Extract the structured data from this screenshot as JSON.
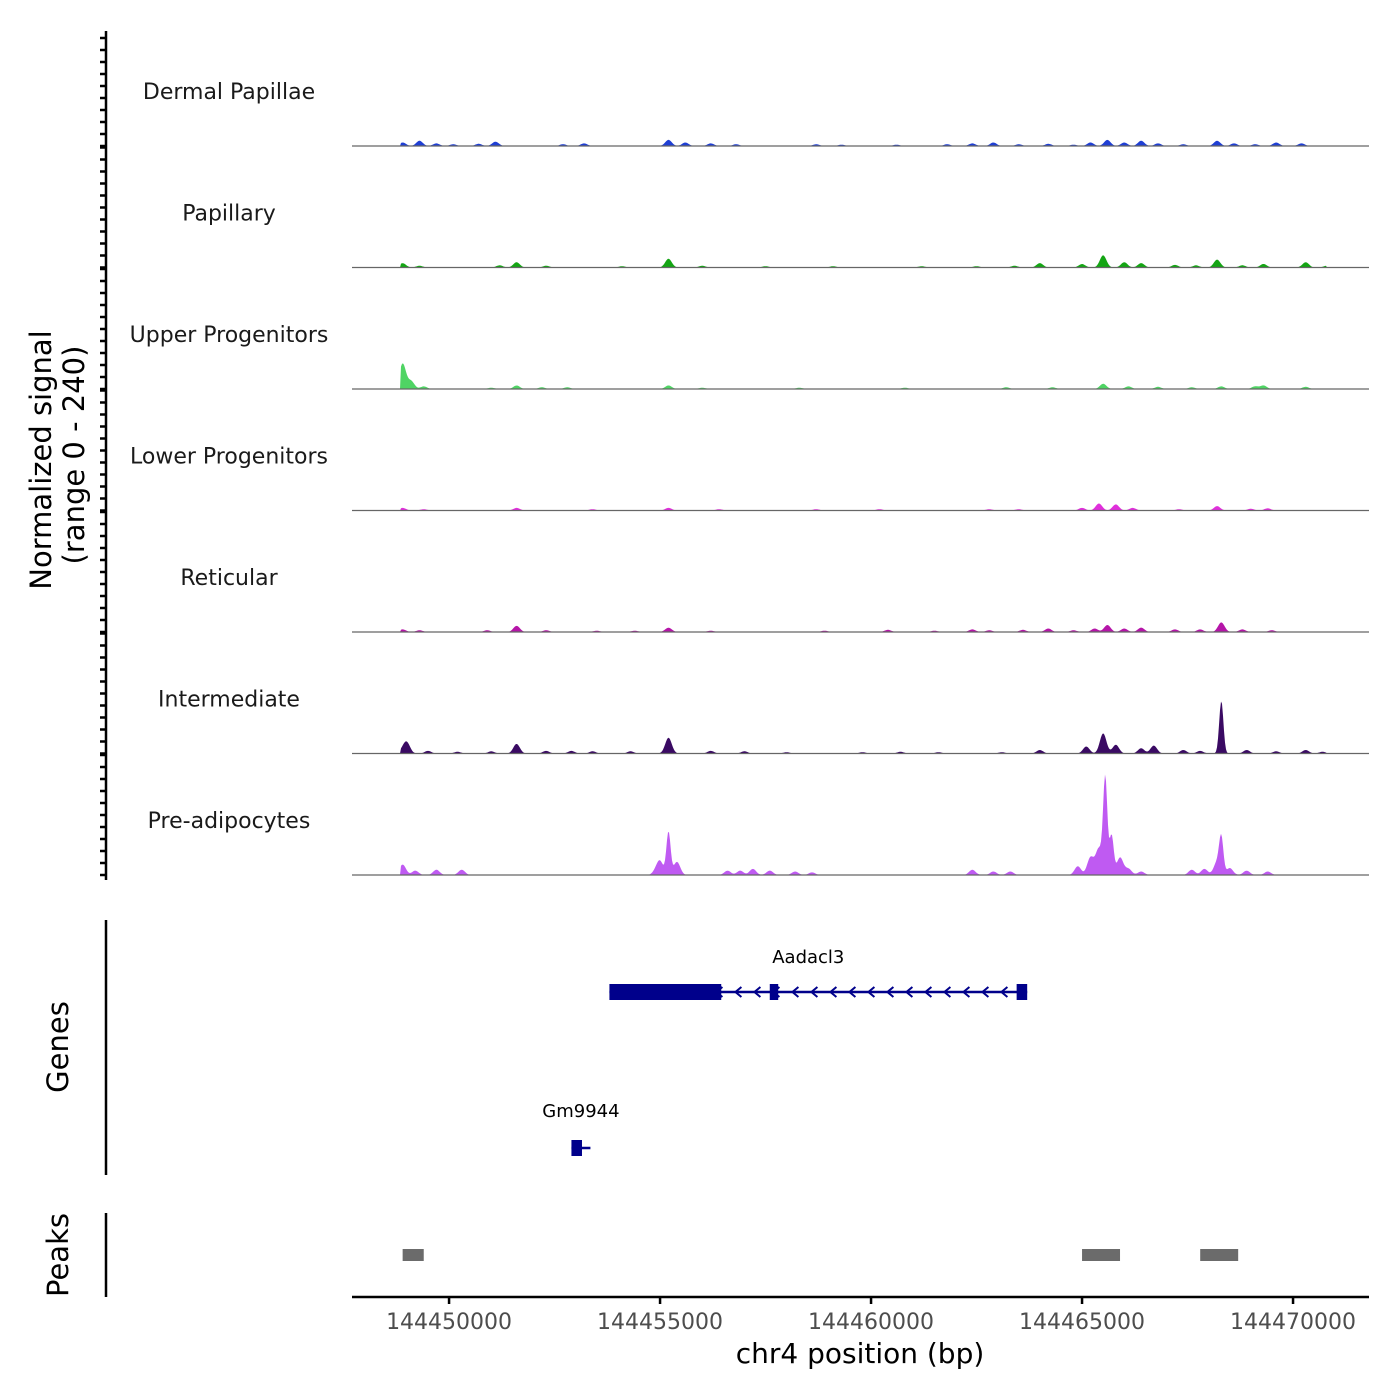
{
  "chart_data": {
    "type": "area",
    "title": "",
    "chromosome": "chr4",
    "xlabel": "chr4 position (bp)",
    "xlim": [
      144447700,
      144471800
    ],
    "xticks": [
      144450000,
      144455000,
      144460000,
      144465000,
      144470000
    ],
    "xtick_labels": [
      "144450000",
      "144455000",
      "144460000",
      "144465000",
      "144470000"
    ],
    "coverage_ylabel_line1": "Normalized signal",
    "coverage_ylabel_line2": "(range 0 - 240)",
    "ylim": [
      0,
      240
    ],
    "series": [
      {
        "name": "Dermal Papillae",
        "color": "#1f3fd4",
        "peaks": [
          [
            144448900,
            8
          ],
          [
            144449300,
            12
          ],
          [
            144449700,
            6
          ],
          [
            144450100,
            4
          ],
          [
            144450700,
            5
          ],
          [
            144451100,
            10
          ],
          [
            144452700,
            4
          ],
          [
            144453200,
            6
          ],
          [
            144455200,
            14
          ],
          [
            144455600,
            8
          ],
          [
            144456200,
            6
          ],
          [
            144456800,
            4
          ],
          [
            144458700,
            4
          ],
          [
            144459300,
            3
          ],
          [
            144460600,
            3
          ],
          [
            144461800,
            4
          ],
          [
            144462400,
            6
          ],
          [
            144462900,
            8
          ],
          [
            144463500,
            4
          ],
          [
            144464200,
            5
          ],
          [
            144464800,
            3
          ],
          [
            144465200,
            8
          ],
          [
            144465600,
            14
          ],
          [
            144466000,
            8
          ],
          [
            144466400,
            12
          ],
          [
            144466800,
            6
          ],
          [
            144467400,
            4
          ],
          [
            144468200,
            12
          ],
          [
            144468600,
            6
          ],
          [
            144469100,
            4
          ],
          [
            144469600,
            8
          ],
          [
            144470200,
            6
          ]
        ]
      },
      {
        "name": "Papillary",
        "color": "#14a514",
        "peaks": [
          [
            144448900,
            10
          ],
          [
            144449300,
            4
          ],
          [
            144451200,
            5
          ],
          [
            144451600,
            12
          ],
          [
            144452300,
            4
          ],
          [
            144454100,
            3
          ],
          [
            144455200,
            20
          ],
          [
            144456000,
            4
          ],
          [
            144457500,
            3
          ],
          [
            144459100,
            3
          ],
          [
            144461200,
            3
          ],
          [
            144462500,
            3
          ],
          [
            144463400,
            4
          ],
          [
            144464000,
            10
          ],
          [
            144465000,
            8
          ],
          [
            144465500,
            28
          ],
          [
            144466000,
            12
          ],
          [
            144466400,
            10
          ],
          [
            144467200,
            6
          ],
          [
            144467700,
            5
          ],
          [
            144468200,
            18
          ],
          [
            144468800,
            5
          ],
          [
            144469300,
            8
          ],
          [
            144470300,
            12
          ],
          [
            144470800,
            4
          ]
        ]
      },
      {
        "name": "Upper Progenitors",
        "color": "#4fd464",
        "peaks": [
          [
            144448900,
            58
          ],
          [
            144449100,
            18
          ],
          [
            144449400,
            6
          ],
          [
            144451000,
            3
          ],
          [
            144451600,
            8
          ],
          [
            144452200,
            4
          ],
          [
            144452800,
            4
          ],
          [
            144455200,
            8
          ],
          [
            144456000,
            3
          ],
          [
            144458300,
            3
          ],
          [
            144460800,
            3
          ],
          [
            144463200,
            4
          ],
          [
            144464300,
            4
          ],
          [
            144465500,
            12
          ],
          [
            144466100,
            6
          ],
          [
            144466800,
            5
          ],
          [
            144467600,
            4
          ],
          [
            144468300,
            6
          ],
          [
            144469100,
            6
          ],
          [
            144469300,
            8
          ],
          [
            144470300,
            5
          ]
        ]
      },
      {
        "name": "Lower Progenitors",
        "color": "#e02fdb",
        "peaks": [
          [
            144448900,
            6
          ],
          [
            144449400,
            3
          ],
          [
            144451600,
            6
          ],
          [
            144453400,
            3
          ],
          [
            144455200,
            6
          ],
          [
            144456400,
            3
          ],
          [
            144458700,
            3
          ],
          [
            144460200,
            3
          ],
          [
            144462800,
            3
          ],
          [
            144463500,
            3
          ],
          [
            144465000,
            6
          ],
          [
            144465400,
            16
          ],
          [
            144465800,
            14
          ],
          [
            144466200,
            6
          ],
          [
            144467300,
            3
          ],
          [
            144468200,
            10
          ],
          [
            144469000,
            4
          ],
          [
            144469400,
            5
          ]
        ]
      },
      {
        "name": "Reticular",
        "color": "#b515a8",
        "peaks": [
          [
            144448900,
            6
          ],
          [
            144449300,
            4
          ],
          [
            144450900,
            4
          ],
          [
            144451600,
            14
          ],
          [
            144452300,
            4
          ],
          [
            144453500,
            3
          ],
          [
            144454400,
            3
          ],
          [
            144455200,
            10
          ],
          [
            144456200,
            3
          ],
          [
            144458900,
            3
          ],
          [
            144460400,
            5
          ],
          [
            144461500,
            3
          ],
          [
            144462400,
            6
          ],
          [
            144462800,
            4
          ],
          [
            144463600,
            5
          ],
          [
            144464200,
            8
          ],
          [
            144464800,
            4
          ],
          [
            144465300,
            8
          ],
          [
            144465600,
            16
          ],
          [
            144466000,
            8
          ],
          [
            144466400,
            10
          ],
          [
            144467200,
            6
          ],
          [
            144467800,
            6
          ],
          [
            144468300,
            22
          ],
          [
            144468800,
            6
          ],
          [
            144469500,
            4
          ]
        ]
      },
      {
        "name": "Intermediate",
        "color": "#3a0a63",
        "peaks": [
          [
            144448900,
            8
          ],
          [
            144449000,
            24
          ],
          [
            144449500,
            6
          ],
          [
            144450200,
            4
          ],
          [
            144451000,
            5
          ],
          [
            144451600,
            22
          ],
          [
            144452300,
            6
          ],
          [
            144452900,
            6
          ],
          [
            144453400,
            5
          ],
          [
            144454300,
            5
          ],
          [
            144455200,
            36
          ],
          [
            144456200,
            6
          ],
          [
            144457000,
            5
          ],
          [
            144458000,
            3
          ],
          [
            144459800,
            3
          ],
          [
            144460700,
            4
          ],
          [
            144461600,
            3
          ],
          [
            144463100,
            3
          ],
          [
            144464000,
            8
          ],
          [
            144465100,
            16
          ],
          [
            144465500,
            46
          ],
          [
            144465800,
            20
          ],
          [
            144466400,
            12
          ],
          [
            144466700,
            18
          ],
          [
            144467400,
            8
          ],
          [
            144467800,
            6
          ],
          [
            144468300,
            120
          ],
          [
            144468900,
            8
          ],
          [
            144469600,
            5
          ],
          [
            144470300,
            8
          ],
          [
            144470700,
            4
          ]
        ]
      },
      {
        "name": "Pre-adipocytes",
        "color": "#bf5af2",
        "peaks": [
          [
            144448900,
            24
          ],
          [
            144449200,
            10
          ],
          [
            144449700,
            12
          ],
          [
            144450300,
            12
          ],
          [
            144455000,
            30
          ],
          [
            144455200,
            98
          ],
          [
            144455400,
            30
          ],
          [
            144454900,
            8
          ],
          [
            144456600,
            10
          ],
          [
            144456900,
            10
          ],
          [
            144457200,
            14
          ],
          [
            144457600,
            10
          ],
          [
            144458200,
            8
          ],
          [
            144458600,
            6
          ],
          [
            144462400,
            12
          ],
          [
            144462900,
            8
          ],
          [
            144463300,
            8
          ],
          [
            144464900,
            20
          ],
          [
            144465200,
            40
          ],
          [
            144465400,
            60
          ],
          [
            144465550,
            220
          ],
          [
            144465700,
            90
          ],
          [
            144465900,
            40
          ],
          [
            144466100,
            14
          ],
          [
            144466400,
            8
          ],
          [
            144467600,
            12
          ],
          [
            144467900,
            14
          ],
          [
            144468200,
            30
          ],
          [
            144468300,
            80
          ],
          [
            144468500,
            16
          ],
          [
            144468900,
            10
          ],
          [
            144469400,
            8
          ]
        ]
      }
    ],
    "genes_ylabel": "Genes",
    "genes": [
      {
        "name": "Aadacl3",
        "strand": "-",
        "start": 144453800,
        "end": 144463700,
        "exons": [
          [
            144453800,
            144456450
          ],
          [
            144457600,
            144457800
          ],
          [
            144463450,
            144463700
          ]
        ]
      },
      {
        "name": "Gm9944",
        "strand": "-",
        "start": 144452900,
        "end": 144453350,
        "exons": [
          [
            144452900,
            144453150
          ]
        ]
      }
    ],
    "peaks_ylabel": "Peaks",
    "peak_regions": [
      [
        144448900,
        144449400
      ],
      [
        144465000,
        144465900
      ],
      [
        144467800,
        144468700
      ]
    ]
  },
  "colors": {
    "axis": "#000000",
    "baseline": "#666666",
    "gene": "#00008b",
    "peak": "#6b6b6b"
  }
}
